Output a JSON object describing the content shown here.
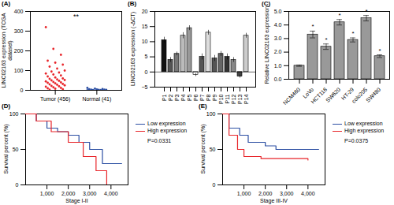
{
  "chart_data": [
    {
      "type": "scatter",
      "panel": "(A)",
      "ylabel": "LINC02163 expression (TCGA dataset)",
      "categories": [
        "Tumor (456)",
        "Normal (41)"
      ],
      "values": [
        [
          320,
          210,
          180,
          150,
          140,
          130,
          120,
          110,
          100,
          95,
          90,
          85,
          80,
          75,
          70,
          65,
          60,
          58,
          55,
          52,
          50,
          48,
          45,
          42,
          40,
          38,
          35,
          32,
          30,
          28,
          25,
          22,
          20,
          18,
          15,
          12,
          10,
          8,
          5,
          3
        ],
        [
          12,
          8,
          6,
          5,
          4,
          3,
          3,
          2,
          2,
          1,
          1,
          0.5
        ]
      ],
      "colors": [
        "#e8262b",
        "#2c4fa3"
      ],
      "marker": "circle",
      "annotation": "**",
      "ylim": [
        0,
        400
      ],
      "yticks": [
        0,
        100,
        200,
        300,
        400
      ]
    },
    {
      "type": "bar",
      "panel": "(B)",
      "ylabel": "LINC02163 expression (-ΔCT)",
      "categories": [
        "P1",
        "P2",
        "P3",
        "P4",
        "P5",
        "P6",
        "P7",
        "P8",
        "P9",
        "P10",
        "P11",
        "P12",
        "P13",
        "P14"
      ],
      "values": [
        10.5,
        4,
        6,
        12,
        14.5,
        -1,
        5,
        13,
        4.5,
        6,
        5,
        4,
        -1.5,
        12
      ],
      "errors": [
        1,
        0.8,
        0.6,
        1,
        0.8,
        0.5,
        1,
        0.8,
        1,
        0.8,
        1,
        0.8,
        0.5,
        0.8
      ],
      "colors": [
        "#111111",
        "#555555",
        "#777777",
        "#bbbbbb",
        "#999999",
        "#ffffff",
        "#555555",
        "#dddddd",
        "#555555",
        "#666666",
        "#333333",
        "#888888",
        "#444444",
        "#cccccc"
      ],
      "ylim": [
        -5,
        20
      ],
      "yticks": [
        -5,
        0,
        5,
        10,
        15,
        20
      ]
    },
    {
      "type": "bar",
      "panel": "(C)",
      "ylabel": "Relative LINC02163 expression",
      "categories": [
        "NCM460",
        "LoVo",
        "HCT116",
        "SW620",
        "HT-29",
        "colo205",
        "SW480"
      ],
      "values": [
        1,
        3.3,
        2.4,
        4.2,
        2.9,
        4.5,
        1.7
      ],
      "errors": [
        0.05,
        0.25,
        0.2,
        0.2,
        0.15,
        0.2,
        0.1
      ],
      "significance": [
        null,
        "*",
        "*",
        "*",
        "*",
        "*",
        "*"
      ],
      "color": "#999999",
      "ylim": [
        0,
        5
      ],
      "yticks": [
        0,
        1,
        2,
        3,
        4,
        5
      ]
    },
    {
      "type": "line",
      "panel": "(D)",
      "xlabel": "Stage I-II",
      "ylabel": "Survival percent (%)",
      "series": [
        {
          "name": "Low expression",
          "color": "#2c4fa3",
          "x": [
            0,
            500,
            1000,
            1500,
            2000,
            2500,
            3000,
            3600,
            4500
          ],
          "values": [
            100,
            90,
            80,
            75,
            70,
            60,
            50,
            30,
            30
          ]
        },
        {
          "name": "High expression",
          "color": "#e8262b",
          "x": [
            0,
            500,
            1200,
            2000,
            2700,
            3300,
            3800
          ],
          "values": [
            100,
            90,
            75,
            60,
            40,
            20,
            0
          ]
        }
      ],
      "annotation": "P=0.0331",
      "legend": "right",
      "line_style": "step",
      "xlim": [
        0,
        4800
      ],
      "xticks": [
        1000,
        2000,
        3000,
        4000
      ],
      "ylim": [
        0,
        100
      ],
      "yticks": [
        0,
        50,
        100
      ]
    },
    {
      "type": "line",
      "panel": "(E)",
      "xlabel": "Stage III-IV",
      "ylabel": "Survival percent (%)",
      "series": [
        {
          "name": "Low expression",
          "color": "#2c4fa3",
          "x": [
            0,
            300,
            800,
            1200,
            2000,
            2500,
            4500
          ],
          "values": [
            100,
            80,
            70,
            60,
            55,
            50,
            50
          ]
        },
        {
          "name": "High expression",
          "color": "#e8262b",
          "x": [
            0,
            300,
            700,
            1000,
            1800,
            4000
          ],
          "values": [
            100,
            70,
            50,
            40,
            37,
            35
          ]
        }
      ],
      "annotation": "P=0.0375",
      "legend": "right",
      "line_style": "step",
      "xlim": [
        0,
        4800
      ],
      "xticks": [
        1000,
        2000,
        3000,
        4000
      ],
      "ylim": [
        0,
        100
      ],
      "yticks": [
        0,
        50,
        100
      ]
    }
  ]
}
